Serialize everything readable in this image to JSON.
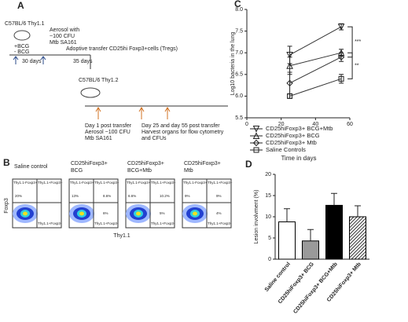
{
  "panel_a": {
    "label": "A",
    "donor": "C57BL/6 Thy1.1",
    "bcg_plus": "+BCG",
    "bcg_minus": "- BCG",
    "aerosol": [
      "Aerosol with",
      "~100 CFU",
      "Mtb SA161"
    ],
    "days_30": "30 days",
    "days_35": "35 days",
    "transfer": "Adoptive transfer CD25hi Foxp3+cells (Tregs)",
    "recipient": "C57BL/6 Thy1.2",
    "day1": [
      "Day 1 post transfer",
      "Aerosol ~100 CFU",
      "Mtb SA161"
    ],
    "harvest": [
      "Day 25  and day 55 post transfer",
      "Harvest organs for flow cytometry",
      "and CFUs"
    ]
  },
  "panel_b": {
    "label": "B",
    "y_axis": "Foxp3",
    "x_axis": "Thy1.1",
    "plots": [
      {
        "title": [
          "Saline control"
        ],
        "ul": "Thy1.1-Foxp3+",
        "ur": "Thy1.1+Foxp3+",
        "lr": "Thy1.1+Foxp3-",
        "ul_pct": "20%"
      },
      {
        "title": [
          "CD25hiFoxp3+",
          "BCG"
        ],
        "ul": "Thy1.1-Foxp3+",
        "ur": "Thy1.1+Foxp3+",
        "lr": "Thy1.1+Foxp3-",
        "ul_pct": "13%",
        "ur_pct": "8.6%",
        "lr_pct": "6%"
      },
      {
        "title": [
          "CD25hiFoxp3+",
          "BCG+Mtb"
        ],
        "ul": "Thy1.1-Foxp3+",
        "ur": "Thy1.1+Foxp3+",
        "lr": "Thy1.1+Foxp3-",
        "ul_pct": "6.6%",
        "ur_pct": "10.2%",
        "lr_pct": "5%"
      },
      {
        "title": [
          "CD25hiFoxp3+",
          "Mtb"
        ],
        "ul": "Thy1.1-Foxp3+",
        "ur": "Thy1.1+Foxp3+",
        "lr": "Thy1.1+Foxp3-",
        "ul_pct": "9%",
        "ur_pct": "9%",
        "lr_pct": "4%"
      }
    ]
  },
  "chart_data": [
    {
      "label": "C",
      "type": "line",
      "x": [
        25,
        55
      ],
      "xlim": [
        0,
        60
      ],
      "xticks": [
        0,
        20,
        40,
        60
      ],
      "ylim": [
        5.5,
        8
      ],
      "yticks": [
        5.5,
        {
          "value": 6,
          "label": "6.0"
        },
        6.5,
        {
          "value": 7,
          "label": "7.0"
        },
        7.5,
        {
          "value": 8,
          "label": "8.0"
        }
      ],
      "xlabel": "Time in days",
      "ylabel": "Log10 bacteria in the lung",
      "color": "#333333",
      "series": [
        {
          "name": "CD25hiFoxp3+ BCG+Mtb",
          "marker": "triangle-down",
          "values": [
            6.95,
            7.6
          ],
          "errors": [
            0.2,
            0.07
          ]
        },
        {
          "name": "CD25hiFoxp3+ BCG",
          "marker": "triangle-up",
          "values": [
            6.7,
            7.0
          ],
          "errors": [
            0.2,
            0.08
          ]
        },
        {
          "name": "CD25hiFoxp3+ Mtb",
          "marker": "diamond",
          "values": [
            6.3,
            6.9
          ],
          "errors": [
            0.25,
            0.1
          ]
        },
        {
          "name": "Saline Controls",
          "marker": "square",
          "values": [
            6.0,
            6.4
          ],
          "errors": [
            0.05,
            0.1
          ]
        }
      ],
      "annotations": [
        "***",
        "**"
      ]
    },
    {
      "label": "D",
      "type": "bar",
      "categories": [
        "Saline control",
        "CD25hiFoxp3+ BCG",
        "CD25hiFoxp3+ BCG+Mtb",
        "CD25hiFoxp3+ Mtb"
      ],
      "values": [
        8.8,
        4.3,
        12.7,
        10.0
      ],
      "errors": [
        3.1,
        2.7,
        2.8,
        2.6
      ],
      "fills": [
        "#ffffff",
        "#9a9a9a",
        "#000000",
        "#ffffff"
      ],
      "hatched": [
        false,
        false,
        false,
        true
      ],
      "ylim": [
        0,
        20
      ],
      "yticks": [
        0,
        5,
        10,
        15,
        20
      ],
      "ylabel": "Lesion involvment (%)"
    }
  ]
}
